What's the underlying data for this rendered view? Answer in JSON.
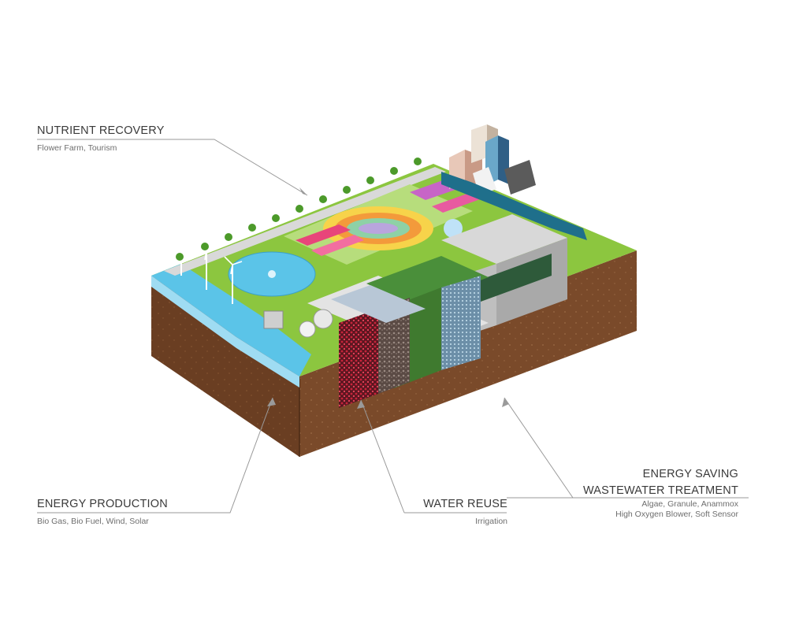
{
  "callouts": {
    "nutrient_recovery": {
      "title": "NUTRIENT RECOVERY",
      "subtitle": "Flower Farm, Tourism"
    },
    "energy_production": {
      "title": "ENERGY PRODUCTION",
      "subtitle": "Bio Gas, Bio Fuel, Wind, Solar"
    },
    "water_reuse": {
      "title": "WATER REUSE",
      "subtitle": "Irrigation"
    },
    "wastewater_treatment": {
      "title_line1": "ENERGY SAVING",
      "title_line2": "WASTEWATER TREATMENT",
      "subtitle_line1": "Algae, Granule, Anammox",
      "subtitle_line2": "High Oxygen Blower, Soft Sensor"
    }
  },
  "colors": {
    "soil": "#7a4a2a",
    "soil_dark": "#5b351d",
    "grass": "#8cc63f",
    "grass_dark": "#5e9e2e",
    "water": "#5bc4e8",
    "concrete": "#c9c9c9",
    "leader_line": "#9a9a9a",
    "text": "#3a3a3a"
  }
}
